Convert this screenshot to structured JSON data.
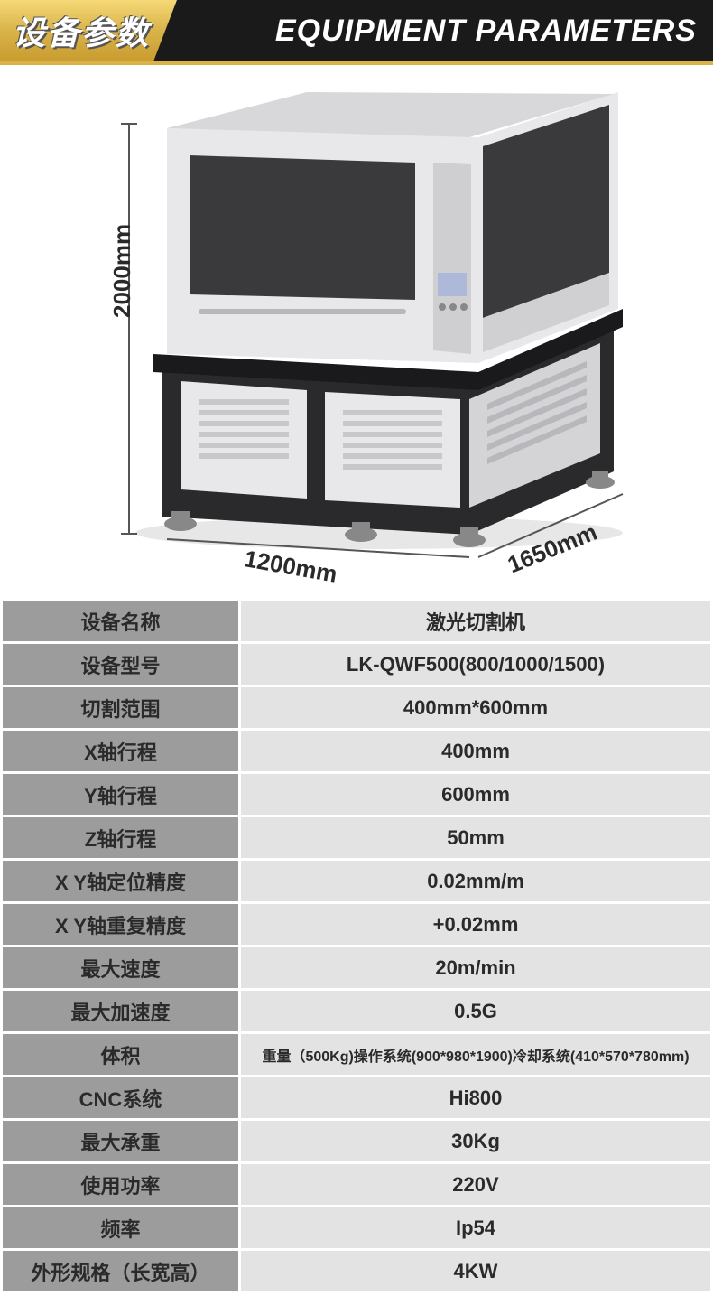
{
  "header": {
    "badge_cn": "设备参数",
    "title_en": "EQUIPMENT PARAMETERS"
  },
  "dimensions": {
    "height": "2000mm",
    "width": "1200mm",
    "depth": "1650mm"
  },
  "machine_colors": {
    "body_light": "#e8e8ea",
    "body_shadow": "#b8b8bc",
    "frame_dark": "#2a2a2c",
    "panel_dark": "#3a3a3c",
    "panel_mid": "#5a5a5c",
    "vent": "#c8c8ca",
    "foot": "#888888"
  },
  "table": {
    "label_bg": "#9c9c9c",
    "value_bg": "#e3e3e3",
    "border": "#ffffff",
    "text": "#2a2a2a",
    "rows": [
      {
        "label": "设备名称",
        "value": "激光切割机"
      },
      {
        "label": "设备型号",
        "value": "LK-QWF500(800/1000/1500)"
      },
      {
        "label": "切割范围",
        "value": "400mm*600mm"
      },
      {
        "label": "X轴行程",
        "value": "400mm"
      },
      {
        "label": "Y轴行程",
        "value": "600mm"
      },
      {
        "label": "Z轴行程",
        "value": "50mm"
      },
      {
        "label": "X Y轴定位精度",
        "value": "0.02mm/m"
      },
      {
        "label": "X Y轴重复精度",
        "value": "+0.02mm"
      },
      {
        "label": "最大速度",
        "value": "20m/min"
      },
      {
        "label": "最大加速度",
        "value": "0.5G"
      },
      {
        "label": "体积",
        "value": "重量（500Kg)操作系统(900*980*1900)冷却系统(410*570*780mm)",
        "small": true
      },
      {
        "label": "CNC系统",
        "value": "Hi800"
      },
      {
        "label": "最大承重",
        "value": "30Kg"
      },
      {
        "label": "使用功率",
        "value": "220V"
      },
      {
        "label": "频率",
        "value": "Ip54"
      },
      {
        "label": "外形规格（长宽高）",
        "value": "4KW"
      }
    ]
  }
}
